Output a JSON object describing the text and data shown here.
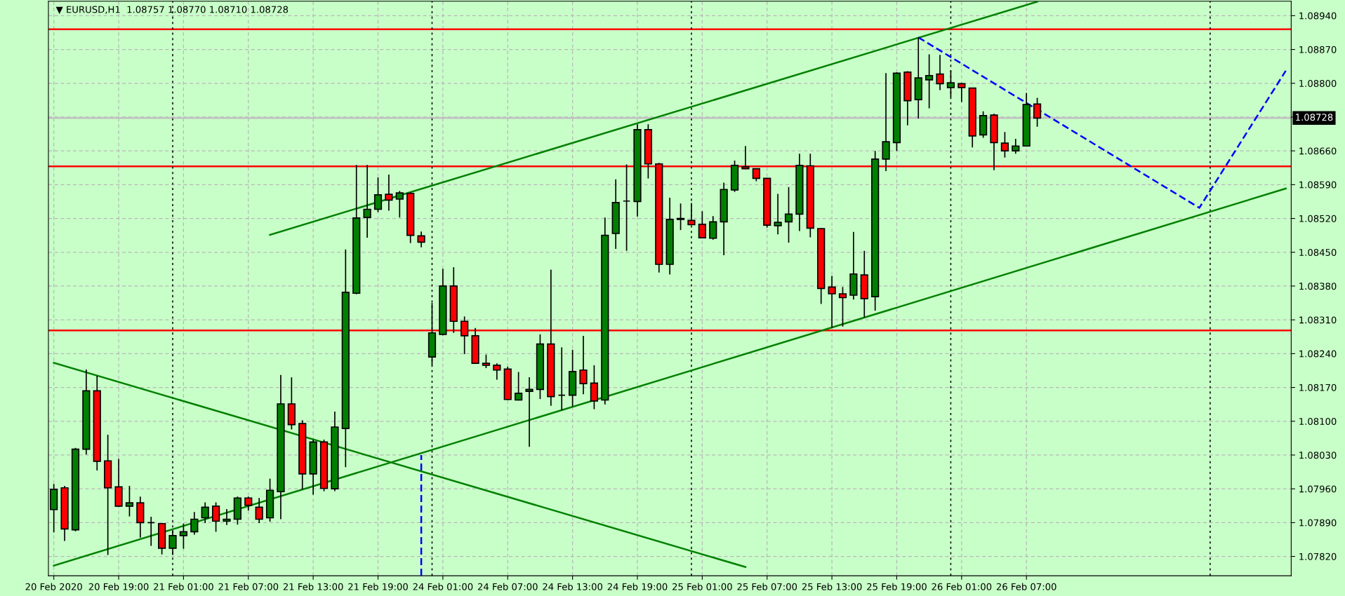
{
  "chart_data": {
    "type": "candlestick",
    "title": "▼ EURUSD,H1  1.08757 1.08770 1.08710 1.08728",
    "categories": [
      "20 Feb 2020",
      null,
      null,
      null,
      null,
      null,
      "20 Feb 19:00",
      null,
      null,
      null,
      null,
      null,
      "21 Feb 01:00",
      null,
      null,
      null,
      null,
      null,
      "21 Feb 07:00",
      null,
      null,
      null,
      null,
      null,
      "21 Feb 13:00",
      null,
      null,
      null,
      null,
      null,
      "21 Feb 19:00",
      null,
      null,
      null,
      null,
      null,
      "24 Feb 01:00",
      null,
      null,
      null,
      null,
      null,
      "24 Feb 07:00",
      null,
      null,
      null,
      null,
      null,
      "24 Feb 13:00",
      null,
      null,
      null,
      null,
      null,
      "24 Feb 19:00",
      null,
      null,
      null,
      null,
      null,
      "25 Feb 01:00",
      null,
      null,
      null,
      null,
      null,
      "25 Feb 07:00",
      null,
      null,
      null,
      null,
      null,
      "25 Feb 13:00",
      null,
      null,
      null,
      null,
      null,
      "25 Feb 19:00",
      null,
      null,
      null,
      null,
      null,
      "26 Feb 01:00",
      null,
      null,
      null,
      null,
      null,
      "26 Feb 07:00",
      null,
      null,
      null,
      null,
      null,
      null,
      null,
      null,
      null,
      null,
      null,
      null,
      null,
      null,
      null,
      null,
      null,
      null,
      null,
      null,
      null,
      null,
      null,
      null
    ],
    "ohlc": [
      [
        1.07917,
        1.0797,
        1.0787,
        1.07959
      ],
      [
        1.07962,
        1.07966,
        1.07852,
        1.07877
      ],
      [
        1.07875,
        1.08045,
        1.07872,
        1.08042
      ],
      [
        1.08042,
        1.08207,
        1.08031,
        1.08163
      ],
      [
        1.08163,
        1.08194,
        1.07998,
        1.08017
      ],
      [
        1.08018,
        1.08072,
        1.07823,
        1.07962
      ],
      [
        1.07964,
        1.08022,
        1.07923,
        1.07924
      ],
      [
        1.07924,
        1.07966,
        1.07903,
        1.07931
      ],
      [
        1.07931,
        1.07944,
        1.07859,
        1.0789
      ],
      [
        1.0789,
        1.07902,
        1.07842,
        1.0789
      ],
      [
        1.07888,
        1.07888,
        1.07824,
        1.07837
      ],
      [
        1.07837,
        1.07874,
        1.07823,
        1.07863
      ],
      [
        1.07863,
        1.07888,
        1.07836,
        1.07871
      ],
      [
        1.07871,
        1.07912,
        1.07865,
        1.07897
      ],
      [
        1.079,
        1.07932,
        1.07889,
        1.07922
      ],
      [
        1.07924,
        1.07932,
        1.07871,
        1.07893
      ],
      [
        1.07893,
        1.07918,
        1.07885,
        1.07897
      ],
      [
        1.07897,
        1.07944,
        1.07886,
        1.07941
      ],
      [
        1.07941,
        1.07944,
        1.07915,
        1.07926
      ],
      [
        1.07922,
        1.07941,
        1.07889,
        1.07897
      ],
      [
        1.079,
        1.07981,
        1.07892,
        1.07957
      ],
      [
        1.07954,
        1.08196,
        1.07897,
        1.08136
      ],
      [
        1.08136,
        1.08191,
        1.08083,
        1.08093
      ],
      [
        1.08095,
        1.08102,
        1.07959,
        1.07991
      ],
      [
        1.07991,
        1.08062,
        1.07948,
        1.08057
      ],
      [
        1.08057,
        1.08062,
        1.07955,
        1.07961
      ],
      [
        1.0796,
        1.0812,
        1.07955,
        1.08088
      ],
      [
        1.08085,
        1.08456,
        1.08005,
        1.08367
      ],
      [
        1.08365,
        1.08631,
        1.08363,
        1.08521
      ],
      [
        1.08522,
        1.08631,
        1.0848,
        1.08539
      ],
      [
        1.08539,
        1.08605,
        1.08533,
        1.08569
      ],
      [
        1.0857,
        1.08611,
        1.08536,
        1.08558
      ],
      [
        1.0856,
        1.08577,
        1.08522,
        1.08573
      ],
      [
        1.08572,
        1.08574,
        1.08469,
        1.08485
      ],
      [
        1.08484,
        1.08493,
        1.0846,
        1.08471
      ],
      [
        1.08233,
        1.08345,
        1.08216,
        1.08283
      ],
      [
        1.0828,
        1.08416,
        1.08278,
        1.0838
      ],
      [
        1.0838,
        1.08419,
        1.08283,
        1.08307
      ],
      [
        1.08307,
        1.08317,
        1.08239,
        1.08277
      ],
      [
        1.08277,
        1.08293,
        1.08219,
        1.0822
      ],
      [
        1.0822,
        1.08238,
        1.0821,
        1.08216
      ],
      [
        1.08216,
        1.0822,
        1.08186,
        1.08206
      ],
      [
        1.08208,
        1.08213,
        1.08144,
        1.08145
      ],
      [
        1.08144,
        1.08202,
        1.08143,
        1.08158
      ],
      [
        1.08162,
        1.08191,
        1.08047,
        1.08166
      ],
      [
        1.08166,
        1.0828,
        1.08146,
        1.0826
      ],
      [
        1.0826,
        1.08414,
        1.08132,
        1.08151
      ],
      [
        1.08154,
        1.08253,
        1.08123,
        1.08154
      ],
      [
        1.08154,
        1.08248,
        1.08131,
        1.08203
      ],
      [
        1.08206,
        1.08277,
        1.08156,
        1.08178
      ],
      [
        1.08179,
        1.08216,
        1.08125,
        1.08142
      ],
      [
        1.08144,
        1.08522,
        1.08135,
        1.08485
      ],
      [
        1.08489,
        1.08601,
        1.08457,
        1.08553
      ],
      [
        1.08556,
        1.08632,
        1.08453,
        1.08556
      ],
      [
        1.08555,
        1.08715,
        1.08524,
        1.08704
      ],
      [
        1.08704,
        1.08715,
        1.08603,
        1.08633
      ],
      [
        1.08633,
        1.08635,
        1.08408,
        1.08425
      ],
      [
        1.08425,
        1.08563,
        1.08404,
        1.08518
      ],
      [
        1.0852,
        1.08551,
        1.08496,
        1.08518
      ],
      [
        1.08516,
        1.08552,
        1.08507,
        1.08507
      ],
      [
        1.08508,
        1.08535,
        1.08479,
        1.0848
      ],
      [
        1.08479,
        1.08525,
        1.08476,
        1.08513
      ],
      [
        1.08513,
        1.08594,
        1.08444,
        1.0858
      ],
      [
        1.08579,
        1.0864,
        1.08575,
        1.0863
      ],
      [
        1.08627,
        1.0867,
        1.08622,
        1.08623
      ],
      [
        1.08623,
        1.08624,
        1.08597,
        1.08603
      ],
      [
        1.08603,
        1.08604,
        1.08501,
        1.08506
      ],
      [
        1.08505,
        1.08571,
        1.08487,
        1.08512
      ],
      [
        1.08513,
        1.08585,
        1.0847,
        1.08529
      ],
      [
        1.08529,
        1.08654,
        1.08494,
        1.0863
      ],
      [
        1.08629,
        1.08654,
        1.08481,
        1.085
      ],
      [
        1.08499,
        1.085,
        1.08343,
        1.08375
      ],
      [
        1.08378,
        1.08401,
        1.08293,
        1.08364
      ],
      [
        1.08364,
        1.08378,
        1.08296,
        1.08356
      ],
      [
        1.08361,
        1.08492,
        1.08352,
        1.08405
      ],
      [
        1.08403,
        1.08453,
        1.08315,
        1.08354
      ],
      [
        1.08358,
        1.0866,
        1.08329,
        1.08643
      ],
      [
        1.08643,
        1.08821,
        1.08618,
        1.08679
      ],
      [
        1.08677,
        1.08823,
        1.0866,
        1.08821
      ],
      [
        1.08823,
        1.08825,
        1.08713,
        1.08764
      ],
      [
        1.08766,
        1.08895,
        1.08727,
        1.08811
      ],
      [
        1.08807,
        1.0886,
        1.08748,
        1.08816
      ],
      [
        1.08819,
        1.08859,
        1.08786,
        1.08799
      ],
      [
        1.08791,
        1.08826,
        1.08771,
        1.08801
      ],
      [
        1.08799,
        1.08801,
        1.08761,
        1.08791
      ],
      [
        1.0879,
        1.08791,
        1.08667,
        1.08691
      ],
      [
        1.08693,
        1.08742,
        1.08687,
        1.08733
      ],
      [
        1.08734,
        1.08737,
        1.0862,
        1.08677
      ],
      [
        1.08676,
        1.08699,
        1.08646,
        1.0866
      ],
      [
        1.0866,
        1.08685,
        1.08654,
        1.0867
      ],
      [
        1.0867,
        1.0878,
        1.08669,
        1.08756
      ],
      [
        1.08757,
        1.0877,
        1.0871,
        1.08728
      ],
      null,
      null,
      null,
      null,
      null,
      null,
      null,
      null,
      null,
      null,
      null,
      null,
      null,
      null,
      null,
      null,
      null,
      null,
      null,
      null,
      null,
      null,
      null
    ],
    "colors": [
      "#008000",
      "#ff0000",
      "#008000",
      "#008000",
      "#ff0000",
      "#ff0000",
      "#ff0000",
      "#008000",
      "#ff0000",
      "#000000",
      "#ff0000",
      "#008000",
      "#008000",
      "#008000",
      "#008000",
      "#ff0000",
      "#008000",
      "#008000",
      "#ff0000",
      "#ff0000",
      "#008000",
      "#008000",
      "#ff0000",
      "#ff0000",
      "#008000",
      "#ff0000",
      "#008000",
      "#008000",
      "#008000",
      "#008000",
      "#008000",
      "#ff0000",
      "#008000",
      "#ff0000",
      "#ff0000",
      "#008000",
      "#008000",
      "#ff0000",
      "#ff0000",
      "#ff0000",
      "#ff0000",
      "#ff0000",
      "#ff0000",
      "#008000",
      "#008000",
      "#008000",
      "#ff0000",
      "#000000",
      "#008000",
      "#ff0000",
      "#ff0000",
      "#008000",
      "#008000",
      "#000000",
      "#008000",
      "#ff0000",
      "#ff0000",
      "#008000",
      "#ff0000",
      "#ff0000",
      "#ff0000",
      "#008000",
      "#008000",
      "#008000",
      "#ff0000",
      "#ff0000",
      "#ff0000",
      "#008000",
      "#008000",
      "#008000",
      "#ff0000",
      "#ff0000",
      "#ff0000",
      "#ff0000",
      "#008000",
      "#ff0000",
      "#008000",
      "#008000",
      "#008000",
      "#ff0000",
      "#008000",
      "#008000",
      "#ff0000",
      "#008000",
      "#ff0000",
      "#ff0000",
      "#008000",
      "#ff0000",
      "#ff0000",
      "#008000",
      "#008000",
      "#ff0000",
      null,
      null,
      null,
      null,
      null,
      null,
      null,
      null,
      null,
      null,
      null,
      null,
      null,
      null,
      null,
      null,
      null,
      null,
      null,
      null,
      null,
      null,
      null
    ],
    "series": [
      {
        "type": "line",
        "values": [
          null,
          null,
          null,
          null,
          null,
          null,
          null,
          null,
          null,
          null,
          null,
          null,
          null,
          null,
          null,
          null,
          null,
          null,
          null,
          null,
          1.08486,
          null,
          null,
          null,
          null,
          null,
          null,
          null,
          null,
          null,
          null,
          null,
          null,
          null,
          null,
          null,
          null,
          null,
          null,
          null,
          null,
          null,
          null,
          null,
          null,
          null,
          null,
          null,
          null,
          null,
          null,
          null,
          null,
          null,
          null,
          null,
          null,
          null,
          null,
          null,
          null,
          null,
          null,
          null,
          null,
          null,
          null,
          null,
          null,
          null,
          null,
          null,
          null,
          null,
          null,
          null,
          null,
          null,
          null,
          null,
          null,
          null,
          null,
          null,
          null,
          null,
          null,
          null,
          null,
          null,
          null,
          1.08969,
          null,
          null,
          null,
          null,
          null,
          null,
          null,
          null,
          null,
          null,
          null,
          null,
          null,
          null,
          null,
          null,
          null,
          null,
          null,
          null,
          null,
          null,
          null
        ],
        "color": "#008000",
        "line_style": "solid"
      },
      {
        "type": "line",
        "values": [
          1.07801,
          null,
          null,
          null,
          null,
          null,
          null,
          null,
          null,
          null,
          null,
          null,
          null,
          null,
          null,
          null,
          null,
          null,
          null,
          null,
          null,
          null,
          null,
          null,
          null,
          null,
          null,
          null,
          null,
          null,
          null,
          null,
          null,
          null,
          null,
          null,
          null,
          null,
          null,
          null,
          null,
          null,
          null,
          null,
          null,
          null,
          null,
          null,
          null,
          null,
          null,
          null,
          null,
          null,
          null,
          null,
          null,
          null,
          null,
          null,
          null,
          null,
          null,
          null,
          null,
          null,
          null,
          null,
          null,
          null,
          null,
          null,
          null,
          null,
          null,
          null,
          null,
          null,
          null,
          null,
          null,
          null,
          null,
          null,
          null,
          null,
          null,
          null,
          null,
          null,
          null,
          null,
          null,
          null,
          null,
          null,
          null,
          null,
          null,
          null,
          null,
          null,
          null,
          null,
          null,
          null,
          null,
          null,
          null,
          null,
          null,
          null,
          null,
          null,
          1.08582
        ],
        "color": "#008000",
        "line_style": "solid"
      },
      {
        "type": "line",
        "values": [
          1.08221,
          null,
          null,
          null,
          null,
          null,
          null,
          null,
          null,
          null,
          null,
          null,
          null,
          null,
          null,
          null,
          null,
          null,
          null,
          null,
          null,
          null,
          null,
          null,
          null,
          null,
          null,
          null,
          null,
          null,
          null,
          null,
          null,
          null,
          null,
          null,
          null,
          null,
          null,
          null,
          null,
          null,
          null,
          null,
          null,
          null,
          null,
          null,
          null,
          null,
          null,
          null,
          null,
          null,
          null,
          null,
          null,
          null,
          null,
          null,
          null,
          null,
          null,
          null,
          1.07798,
          null,
          null,
          null,
          null,
          null,
          null,
          null,
          null,
          null,
          null,
          null,
          null,
          null,
          null,
          null,
          null,
          null,
          null,
          null,
          null,
          null,
          null,
          null,
          null,
          null,
          null,
          null,
          null,
          null,
          null,
          null,
          null,
          null,
          null,
          null,
          null,
          null,
          null,
          null,
          null,
          null,
          null,
          null,
          null,
          null,
          null,
          null,
          null,
          null,
          null
        ],
        "color": "#008000",
        "line_style": "solid"
      },
      {
        "type": "line",
        "values": [
          null,
          null,
          null,
          null,
          null,
          null,
          null,
          null,
          null,
          null,
          null,
          null,
          null,
          null,
          null,
          null,
          null,
          null,
          null,
          null,
          null,
          null,
          null,
          null,
          null,
          null,
          null,
          null,
          null,
          null,
          null,
          null,
          null,
          null,
          null,
          null,
          null,
          null,
          null,
          null,
          null,
          null,
          null,
          null,
          null,
          null,
          null,
          null,
          null,
          null,
          null,
          null,
          null,
          null,
          null,
          null,
          null,
          null,
          null,
          null,
          null,
          null,
          null,
          null,
          null,
          null,
          null,
          null,
          null,
          null,
          null,
          null,
          null,
          null,
          null,
          null,
          null,
          null,
          null,
          null,
          1.08895,
          null,
          null,
          null,
          null,
          null,
          null,
          null,
          null,
          null,
          null,
          null,
          null,
          null,
          null,
          null,
          null,
          null,
          null,
          null,
          null,
          null,
          null,
          null,
          null,
          null,
          1.08542,
          null,
          null,
          null,
          null,
          null,
          null,
          null,
          1.08826
        ],
        "color": "#0000ff",
        "line_style": "dashed"
      }
    ],
    "ref_lines": [
      {
        "axis": "y",
        "value": 1.08912,
        "color": "#ff0000",
        "line_style": "solid"
      },
      {
        "axis": "y",
        "value": 1.08628,
        "color": "#ff0000",
        "line_style": "solid"
      },
      {
        "axis": "y",
        "value": 1.08288,
        "color": "#ff0000",
        "line_style": "solid"
      },
      {
        "axis": "y",
        "value": 1.08728,
        "label": "1.08728",
        "color": "#c0c0c0",
        "line_style": "solid"
      }
    ],
    "ylim": [
      1.0778,
      1.0897
    ],
    "yticks": [
      {
        "value": 1.0782,
        "label": "1.07820"
      },
      {
        "value": 1.0789,
        "label": "1.07890"
      },
      {
        "value": 1.0796,
        "label": "1.07960"
      },
      {
        "value": 1.0803,
        "label": "1.08030"
      },
      {
        "value": 1.081,
        "label": "1.08100"
      },
      {
        "value": 1.0817,
        "label": "1.08170"
      },
      {
        "value": 1.0824,
        "label": "1.08240"
      },
      {
        "value": 1.0831,
        "label": "1.08310"
      },
      {
        "value": 1.0838,
        "label": "1.08380"
      },
      {
        "value": 1.0845,
        "label": "1.08450"
      },
      {
        "value": 1.0852,
        "label": "1.08520"
      },
      {
        "value": 1.0859,
        "label": "1.08590"
      },
      {
        "value": 1.0866,
        "label": "1.08660"
      },
      {
        "value": 1.0873,
        "label": null
      },
      {
        "value": 1.088,
        "label": "1.08800"
      },
      {
        "value": 1.0887,
        "label": "1.08870"
      },
      {
        "value": 1.0894,
        "label": "1.08940"
      }
    ],
    "grid": true,
    "legend": false
  }
}
